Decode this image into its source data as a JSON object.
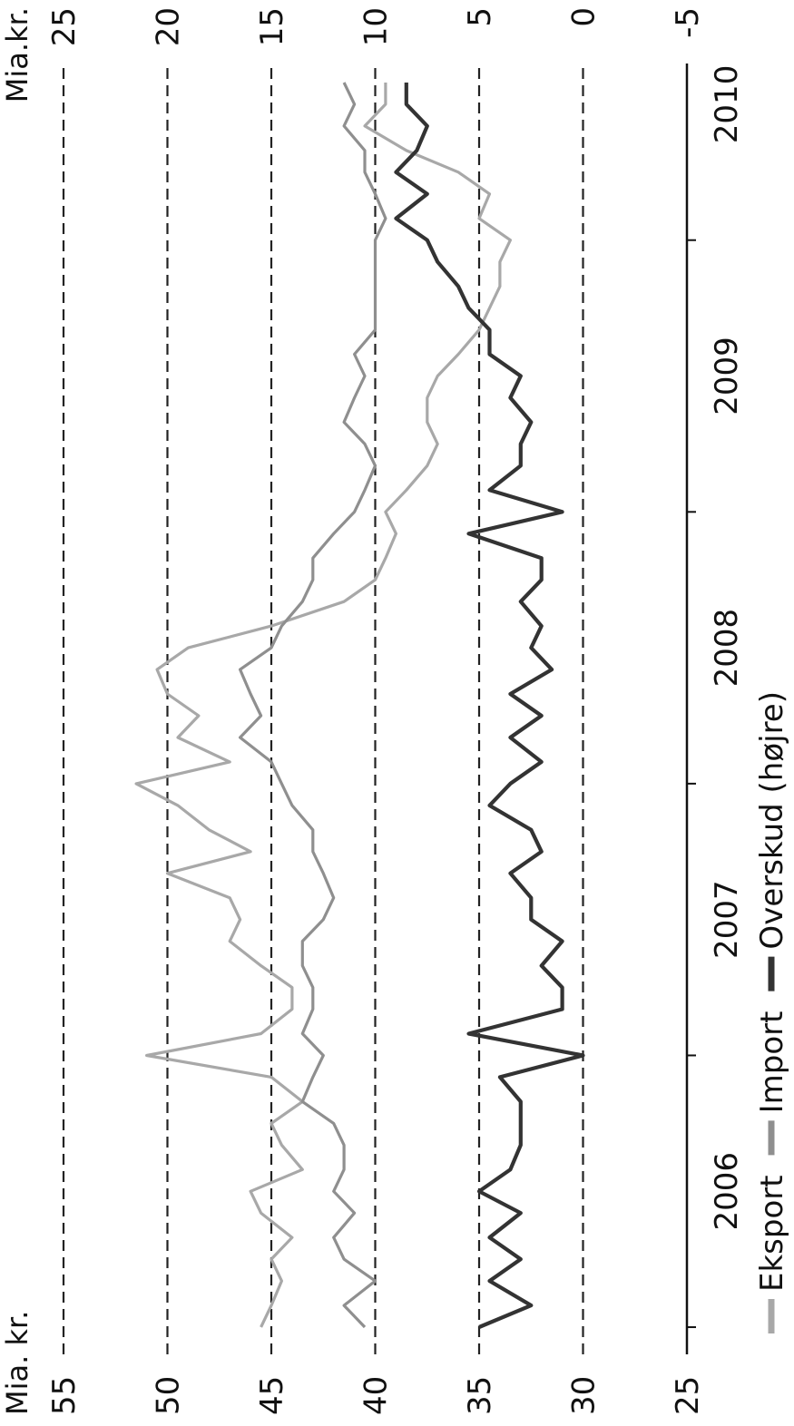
{
  "chart_data": {
    "type": "line",
    "orientation": "rotated 90° clockwise (time runs top to bottom)",
    "left_axis": {
      "unit_label": "Mia. kr.",
      "ticks": [
        "55",
        "50",
        "45",
        "40",
        "35",
        "30",
        "25"
      ],
      "range": [
        25,
        55
      ]
    },
    "right_axis": {
      "unit_label": "Mia.kr.",
      "ticks": [
        "25",
        "20",
        "15",
        "10",
        "5",
        "0",
        "-5"
      ],
      "range": [
        -5,
        25
      ]
    },
    "x_axis": {
      "ticks": [
        "2006",
        "2007",
        "2008",
        "2009",
        "2010"
      ],
      "range": [
        2005.9,
        2010.65
      ]
    },
    "grid": "dashed at major ticks",
    "legend_position": "bottom",
    "series": [
      {
        "name": "Eksport",
        "color": "#a8a8a8",
        "axis": "left",
        "x": [
          2006.0,
          2006.08,
          2006.17,
          2006.25,
          2006.33,
          2006.42,
          2006.5,
          2006.58,
          2006.67,
          2006.75,
          2006.83,
          2006.92,
          2007.0,
          2007.08,
          2007.17,
          2007.25,
          2007.33,
          2007.42,
          2007.5,
          2007.58,
          2007.67,
          2007.75,
          2007.83,
          2007.92,
          2008.0,
          2008.08,
          2008.17,
          2008.25,
          2008.33,
          2008.42,
          2008.5,
          2008.58,
          2008.67,
          2008.75,
          2008.83,
          2008.92,
          2009.0,
          2009.08,
          2009.17,
          2009.25,
          2009.33,
          2009.42,
          2009.5,
          2009.58,
          2009.67,
          2009.75,
          2009.83,
          2009.92,
          2010.0,
          2010.08,
          2010.17,
          2010.25,
          2010.33,
          2010.42,
          2010.5,
          2010.58
        ],
        "values": [
          45.5,
          45.0,
          44.5,
          45.0,
          44.0,
          45.5,
          46.0,
          43.5,
          44.5,
          45.0,
          43.5,
          45.0,
          51.0,
          45.5,
          44.0,
          44.0,
          45.5,
          47.0,
          46.5,
          47.0,
          50.0,
          46.0,
          48.0,
          49.5,
          51.5,
          47.0,
          49.5,
          48.5,
          50.0,
          50.5,
          49.0,
          45.0,
          41.5,
          40.0,
          39.5,
          39.0,
          39.5,
          38.5,
          37.5,
          37.0,
          37.5,
          37.5,
          37.0,
          36.0,
          35.0,
          34.5,
          34.0,
          34.0,
          33.5,
          35.0,
          34.5,
          36.0,
          38.5,
          40.5,
          39.5,
          39.5
        ]
      },
      {
        "name": "Import",
        "color": "#8f8f8f",
        "axis": "left",
        "x": [
          2006.0,
          2006.08,
          2006.17,
          2006.25,
          2006.33,
          2006.42,
          2006.5,
          2006.58,
          2006.67,
          2006.75,
          2006.83,
          2006.92,
          2007.0,
          2007.08,
          2007.17,
          2007.25,
          2007.33,
          2007.42,
          2007.5,
          2007.58,
          2007.67,
          2007.75,
          2007.83,
          2007.92,
          2008.0,
          2008.08,
          2008.17,
          2008.25,
          2008.33,
          2008.42,
          2008.5,
          2008.58,
          2008.67,
          2008.75,
          2008.83,
          2008.92,
          2009.0,
          2009.08,
          2009.17,
          2009.25,
          2009.33,
          2009.42,
          2009.5,
          2009.58,
          2009.67,
          2009.75,
          2009.83,
          2009.92,
          2010.0,
          2010.08,
          2010.17,
          2010.25,
          2010.33,
          2010.42,
          2010.5,
          2010.58
        ],
        "values": [
          40.5,
          41.5,
          40.0,
          41.5,
          42.0,
          41.0,
          42.0,
          41.5,
          41.5,
          42.0,
          43.5,
          43.0,
          42.5,
          43.5,
          43.0,
          43.0,
          43.5,
          43.5,
          42.5,
          42.0,
          42.5,
          43.0,
          43.0,
          44.0,
          44.5,
          45.0,
          46.5,
          45.5,
          46.0,
          46.5,
          45.0,
          44.5,
          43.5,
          43.0,
          43.0,
          42.0,
          41.0,
          40.5,
          40.0,
          40.5,
          41.5,
          41.0,
          40.5,
          41.0,
          40.0,
          40.0,
          40.0,
          40.0,
          40.0,
          39.5,
          40.0,
          40.5,
          40.5,
          41.5,
          41.0,
          41.5
        ]
      },
      {
        "name": "Overskud (højre)",
        "color": "#333333",
        "axis": "right",
        "x": [
          2006.0,
          2006.08,
          2006.17,
          2006.25,
          2006.33,
          2006.42,
          2006.5,
          2006.58,
          2006.67,
          2006.75,
          2006.83,
          2006.92,
          2007.0,
          2007.08,
          2007.17,
          2007.25,
          2007.33,
          2007.42,
          2007.5,
          2007.58,
          2007.67,
          2007.75,
          2007.83,
          2007.92,
          2008.0,
          2008.08,
          2008.17,
          2008.25,
          2008.33,
          2008.42,
          2008.5,
          2008.58,
          2008.67,
          2008.75,
          2008.83,
          2008.92,
          2009.0,
          2009.08,
          2009.17,
          2009.25,
          2009.33,
          2009.42,
          2009.5,
          2009.58,
          2009.67,
          2009.75,
          2009.83,
          2009.92,
          2010.0,
          2010.08,
          2010.17,
          2010.25,
          2010.33,
          2010.42,
          2010.5,
          2010.58
        ],
        "values": [
          5.0,
          2.5,
          4.5,
          3.0,
          4.5,
          3.0,
          5.0,
          3.5,
          3.0,
          3.0,
          3.0,
          4.0,
          0.0,
          5.5,
          1.0,
          1.0,
          2.0,
          1.0,
          2.5,
          2.5,
          3.5,
          2.0,
          2.5,
          4.5,
          3.5,
          2.0,
          3.5,
          2.0,
          3.5,
          1.5,
          2.5,
          2.0,
          3.0,
          2.0,
          2.0,
          5.5,
          1.0,
          4.5,
          3.0,
          3.0,
          2.5,
          3.5,
          3.0,
          4.5,
          4.5,
          5.5,
          6.0,
          7.0,
          7.5,
          9.0,
          7.5,
          9.0,
          8.0,
          7.5,
          8.5,
          8.5
        ]
      }
    ]
  }
}
